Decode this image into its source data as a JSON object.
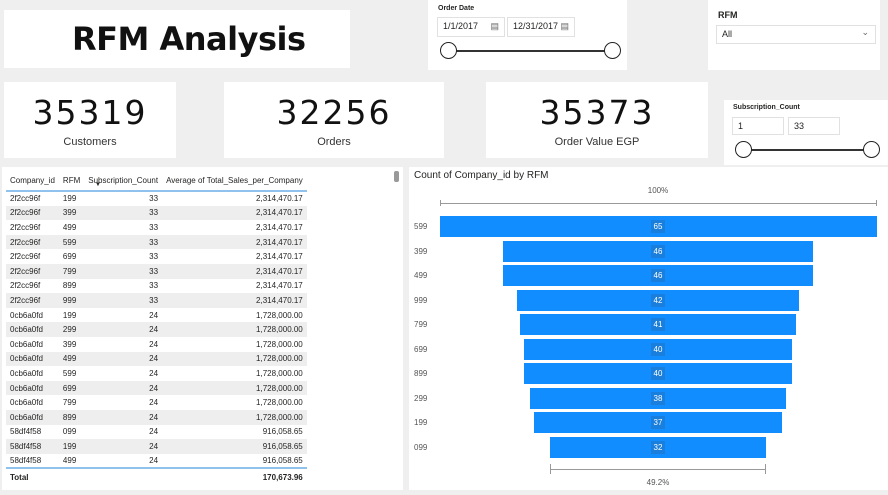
{
  "title": "RFM Analysis",
  "order_date": {
    "label": "Order Date",
    "start": "1/1/2017",
    "end": "12/31/2017",
    "icon": "calendar-icon"
  },
  "rfm_slicer": {
    "label": "RFM",
    "value": "All"
  },
  "cards": [
    {
      "value": "35319",
      "label": "Customers"
    },
    {
      "value": "32256",
      "label": "Orders"
    },
    {
      "value": "35373",
      "label": "Order Value EGP"
    }
  ],
  "subscription_slicer": {
    "label": "Subscription_Count",
    "min": "1",
    "max": "33"
  },
  "table": {
    "headers": [
      "Company_id",
      "RFM",
      "Subscription_Count",
      "Average of Total_Sales_per_Company"
    ],
    "rows": [
      [
        "2f2cc96f",
        "199",
        "33",
        "2,314,470.17"
      ],
      [
        "2f2cc96f",
        "399",
        "33",
        "2,314,470.17"
      ],
      [
        "2f2cc96f",
        "499",
        "33",
        "2,314,470.17"
      ],
      [
        "2f2cc96f",
        "599",
        "33",
        "2,314,470.17"
      ],
      [
        "2f2cc96f",
        "699",
        "33",
        "2,314,470.17"
      ],
      [
        "2f2cc96f",
        "799",
        "33",
        "2,314,470.17"
      ],
      [
        "2f2cc96f",
        "899",
        "33",
        "2,314,470.17"
      ],
      [
        "2f2cc96f",
        "999",
        "33",
        "2,314,470.17"
      ],
      [
        "0cb6a0fd",
        "199",
        "24",
        "1,728,000.00"
      ],
      [
        "0cb6a0fd",
        "299",
        "24",
        "1,728,000.00"
      ],
      [
        "0cb6a0fd",
        "399",
        "24",
        "1,728,000.00"
      ],
      [
        "0cb6a0fd",
        "499",
        "24",
        "1,728,000.00"
      ],
      [
        "0cb6a0fd",
        "599",
        "24",
        "1,728,000.00"
      ],
      [
        "0cb6a0fd",
        "699",
        "24",
        "1,728,000.00"
      ],
      [
        "0cb6a0fd",
        "799",
        "24",
        "1,728,000.00"
      ],
      [
        "0cb6a0fd",
        "899",
        "24",
        "1,728,000.00"
      ],
      [
        "58df4f58",
        "099",
        "24",
        "916,058.65"
      ],
      [
        "58df4f58",
        "199",
        "24",
        "916,058.65"
      ],
      [
        "58df4f58",
        "499",
        "24",
        "916,058.65"
      ]
    ],
    "total_label": "Total",
    "total_value": "170,673.96"
  },
  "chart_data": {
    "type": "funnel",
    "title": "Count of Company_id by RFM",
    "categories": [
      "599",
      "399",
      "499",
      "999",
      "799",
      "699",
      "899",
      "299",
      "199",
      "099"
    ],
    "values": [
      65,
      46,
      46,
      42,
      41,
      40,
      40,
      38,
      37,
      32
    ],
    "top_pct": "100%",
    "bottom_pct": "49.2%",
    "color": "#118dff"
  }
}
